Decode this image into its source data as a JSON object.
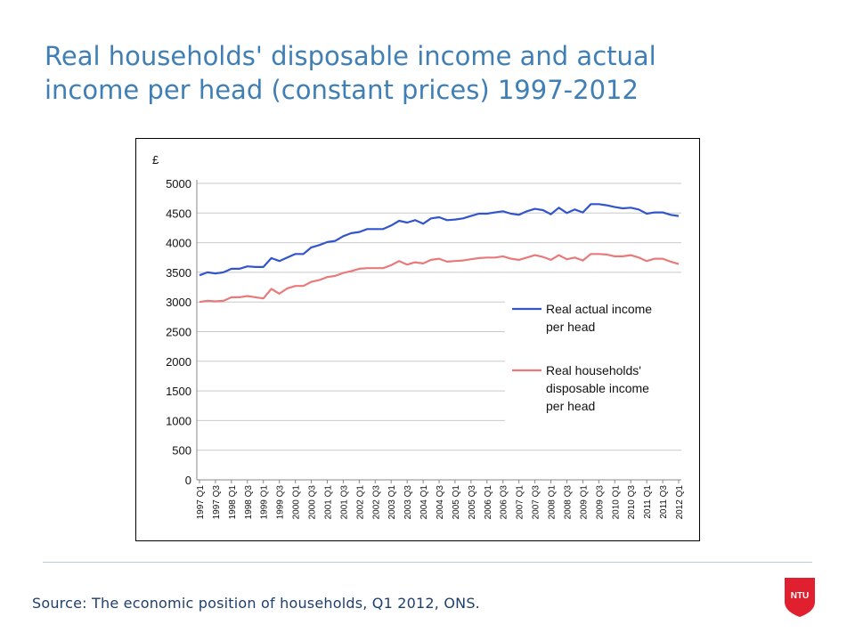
{
  "slide": {
    "title_line1": "Real households' disposable income and actual",
    "title_line2": "income per head (constant prices) 1997-2012",
    "source": "Source: The economic position of households, Q1 2012, ONS.",
    "logo_text": "NTU",
    "colors": {
      "title": "#3f7fb6",
      "logo": "#e0202e",
      "divider": "#b8cce0"
    }
  },
  "chart_data": {
    "type": "line",
    "title": "",
    "ylabel": "£",
    "xlabel": "",
    "ylim": [
      0,
      5000
    ],
    "yticks": [
      0,
      500,
      1000,
      1500,
      2000,
      2500,
      3000,
      3500,
      4000,
      4500,
      5000
    ],
    "grid": true,
    "legend_position": "right",
    "x": [
      "1997 Q1",
      "1997 Q2",
      "1997 Q3",
      "1997 Q4",
      "1998 Q1",
      "1998 Q2",
      "1998 Q3",
      "1998 Q4",
      "1999 Q1",
      "1999 Q2",
      "1999 Q3",
      "1999 Q4",
      "2000 Q1",
      "2000 Q2",
      "2000 Q3",
      "2000 Q4",
      "2001 Q1",
      "2001 Q2",
      "2001 Q3",
      "2001 Q4",
      "2002 Q1",
      "2002 Q2",
      "2002 Q3",
      "2002 Q4",
      "2003 Q1",
      "2003 Q2",
      "2003 Q3",
      "2003 Q4",
      "2004 Q1",
      "2004 Q2",
      "2004 Q3",
      "2004 Q4",
      "2005 Q1",
      "2005 Q2",
      "2005 Q3",
      "2005 Q4",
      "2006 Q1",
      "2006 Q2",
      "2006 Q3",
      "2006 Q4",
      "2007 Q1",
      "2007 Q2",
      "2007 Q3",
      "2007 Q4",
      "2008 Q1",
      "2008 Q2",
      "2008 Q3",
      "2008 Q4",
      "2009 Q1",
      "2009 Q2",
      "2009 Q3",
      "2009 Q4",
      "2010 Q1",
      "2010 Q2",
      "2010 Q3",
      "2010 Q4",
      "2011 Q1",
      "2011 Q2",
      "2011 Q3",
      "2011 Q4",
      "2012 Q1"
    ],
    "x_tick_labels": [
      "1997 Q1",
      "1997 Q3",
      "1998 Q1",
      "1998 Q3",
      "1999 Q1",
      "1999 Q3",
      "2000 Q1",
      "2000 Q3",
      "2001 Q1",
      "2001 Q3",
      "2002 Q1",
      "2002 Q3",
      "2003 Q1",
      "2003 Q3",
      "2004 Q1",
      "2004 Q3",
      "2005 Q1",
      "2005 Q3",
      "2006 Q1",
      "2006 Q3",
      "2007 Q1",
      "2007 Q3",
      "2008 Q1",
      "2008 Q3",
      "2009 Q1",
      "2009 Q3",
      "2010 Q1",
      "2010 Q3",
      "2011 Q1",
      "2011 Q3",
      "2012 Q1"
    ],
    "series": [
      {
        "name": "Real actual income per head",
        "color": "#3355cc",
        "values": [
          3450,
          3500,
          3480,
          3500,
          3560,
          3560,
          3600,
          3590,
          3590,
          3740,
          3690,
          3750,
          3810,
          3810,
          3920,
          3960,
          4010,
          4030,
          4110,
          4160,
          4180,
          4230,
          4230,
          4230,
          4290,
          4370,
          4340,
          4380,
          4320,
          4410,
          4430,
          4380,
          4390,
          4410,
          4450,
          4490,
          4490,
          4510,
          4530,
          4490,
          4470,
          4530,
          4570,
          4550,
          4480,
          4590,
          4500,
          4560,
          4510,
          4650,
          4650,
          4630,
          4600,
          4580,
          4590,
          4560,
          4490,
          4510,
          4510,
          4470,
          4450
        ]
      },
      {
        "name": "Real households' disposable income per head",
        "color": "#e87a7a",
        "values": [
          3000,
          3020,
          3010,
          3020,
          3080,
          3080,
          3100,
          3080,
          3060,
          3220,
          3140,
          3230,
          3270,
          3270,
          3340,
          3370,
          3420,
          3440,
          3490,
          3520,
          3560,
          3570,
          3570,
          3570,
          3620,
          3690,
          3630,
          3670,
          3650,
          3710,
          3730,
          3680,
          3690,
          3700,
          3720,
          3740,
          3750,
          3750,
          3770,
          3730,
          3710,
          3750,
          3790,
          3760,
          3710,
          3790,
          3720,
          3750,
          3700,
          3810,
          3810,
          3800,
          3770,
          3770,
          3790,
          3750,
          3690,
          3730,
          3730,
          3680,
          3640
        ]
      }
    ]
  }
}
